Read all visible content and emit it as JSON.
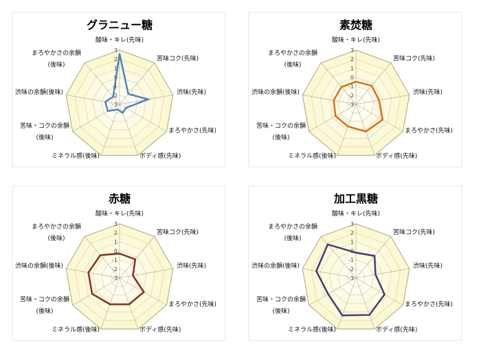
{
  "chart_data": [
    {
      "type": "radar",
      "title": "グラニュー糖",
      "categories": [
        "酸味・キレ(先味)",
        "苦味コク(先味)",
        "渋味(先味)",
        "まろやかさ(先味)",
        "ボディ感(先味)",
        "ミネラル感(後味)",
        "苦味・コクの余韻\n(後味)",
        "渋味の余韻(後味)",
        "まろやかさの余韻\n(後味)"
      ],
      "values": [
        2.6,
        -1.5,
        0.2,
        -2.2,
        -2.0,
        -2.4,
        -1.5,
        -1.4,
        -1.9
      ],
      "rlim": [
        -3,
        3
      ],
      "ticks": [
        "-3",
        "-2",
        "-1",
        "0",
        "1",
        "2",
        "3"
      ],
      "color": "#4f81bd",
      "grid": true
    },
    {
      "type": "radar",
      "title": "素焚糖",
      "categories": [
        "酸味・キレ(先味)",
        "苦味コク(先味)",
        "渋味(先味)",
        "まろやかさ(先味)",
        "ボディ感(先味)",
        "ミネラル感(後味)",
        "苦味・コクの余韻\n(後味)",
        "渋味の余韻(後味)",
        "まろやかさの余韻\n(後味)"
      ],
      "values": [
        -0.5,
        -0.3,
        -0.4,
        0.4,
        0.2,
        -0.4,
        -0.4,
        -0.5,
        -0.5
      ],
      "rlim": [
        -3,
        3
      ],
      "ticks": [
        "-3",
        "-2",
        "-1",
        "0",
        "1",
        "2",
        "3"
      ],
      "color": "#e46c0a",
      "grid": true
    },
    {
      "type": "radar",
      "title": "赤糖",
      "categories": [
        "酸味・キレ(先味)",
        "苦味コク(先味)",
        "渋味(先味)",
        "まろやかさ(先味)",
        "ボディ感(先味)",
        "ミネラル感(後味)",
        "苦味・コクの余韻\n(後味)",
        "渋味の余韻(後味)",
        "まろやかさの余韻\n(後味)"
      ],
      "values": [
        -0.3,
        -0.3,
        -1.5,
        0.1,
        0.1,
        0.1,
        0.5,
        0.5,
        0.3
      ],
      "rlim": [
        -3,
        3
      ],
      "ticks": [
        "-3",
        "-2",
        "-1",
        "0",
        "1",
        "2",
        "3"
      ],
      "color": "#8b2e2a",
      "grid": true
    },
    {
      "type": "radar",
      "title": "加工黒糖",
      "categories": [
        "酸味・キレ(先味)",
        "苦味コク(先味)",
        "渋味(先味)",
        "まろやかさ(先味)",
        "ボディ感(先味)",
        "ミネラル感(後味)",
        "苦味・コクの余韻\n(後味)",
        "渋味の余韻(後味)",
        "まろやかさの余韻\n(後味)"
      ],
      "values": [
        -0.2,
        0.2,
        -0.8,
        0.65,
        1.35,
        1.4,
        0.55,
        1.45,
        1.85
      ],
      "rlim": [
        -3,
        3
      ],
      "ticks": [
        "-3",
        "-2",
        "-1",
        "0",
        "1",
        "2",
        "3"
      ],
      "color": "#463a78",
      "grid": true
    }
  ]
}
